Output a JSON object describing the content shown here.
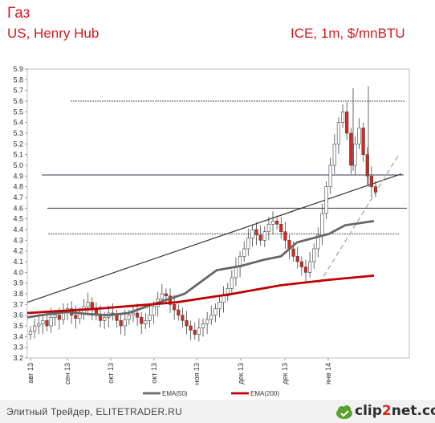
{
  "header": {
    "title": "Газ",
    "subtitle_left": "US, Henry Hub",
    "subtitle_right": "ICE, 1m, $/mnBTU"
  },
  "footer": {
    "source": "Элитный Трейдер, ELITETRADER.RU",
    "logo_prefix": "clip",
    "logo_digit": "2",
    "logo_suffix": "net.com"
  },
  "colors": {
    "title": "#d7191c",
    "up_candle": "#ffffff",
    "down_candle": "#e2231a",
    "ema50": "#666666",
    "ema200": "#c00000",
    "trendline": "#333333",
    "dashed_channel": "#a6a6a6"
  },
  "chart_data": {
    "type": "candlestick",
    "ylim": [
      3.2,
      5.9
    ],
    "yticks": [
      "3.2",
      "3.3",
      "3.4",
      "3.5",
      "3.6",
      "3.7",
      "3.8",
      "3.9",
      "4.0",
      "4.1",
      "4.2",
      "4.3",
      "4.4",
      "4.5",
      "4.6",
      "4.7",
      "4.8",
      "4.9",
      "5.0",
      "5.1",
      "5.2",
      "5.3",
      "5.4",
      "5.5",
      "5.6",
      "5.7",
      "5.8",
      "5.9"
    ],
    "x_tick_labels": [
      "авг 13",
      "сен 13",
      "окт 13",
      "окт 13",
      "ноя 13",
      "дек 13",
      "дек 13",
      "янв 14"
    ],
    "grid": false,
    "legend": [
      {
        "name": "EMA(50)",
        "color": "#666666"
      },
      {
        "name": "EMA(200)",
        "color": "#c00000"
      }
    ],
    "levels": [
      {
        "value": 5.6,
        "style": "dotted"
      },
      {
        "value": 4.91,
        "style": "solid"
      },
      {
        "value": 4.6,
        "style": "solid"
      },
      {
        "value": 4.36,
        "style": "dotted"
      }
    ],
    "close_series": [
      3.45,
      3.5,
      3.52,
      3.55,
      3.5,
      3.58,
      3.6,
      3.56,
      3.62,
      3.66,
      3.6,
      3.57,
      3.62,
      3.68,
      3.72,
      3.65,
      3.6,
      3.55,
      3.58,
      3.62,
      3.6,
      3.55,
      3.5,
      3.56,
      3.6,
      3.62,
      3.58,
      3.52,
      3.55,
      3.6,
      3.68,
      3.75,
      3.8,
      3.78,
      3.7,
      3.65,
      3.6,
      3.55,
      3.5,
      3.46,
      3.42,
      3.48,
      3.52,
      3.56,
      3.6,
      3.66,
      3.72,
      3.78,
      3.85,
      3.95,
      4.05,
      4.15,
      4.22,
      4.32,
      4.4,
      4.35,
      4.3,
      4.38,
      4.45,
      4.48,
      4.45,
      4.38,
      4.3,
      4.22,
      4.15,
      4.1,
      4.05,
      4.0,
      4.1,
      4.22,
      4.35,
      4.55,
      4.8,
      5.0,
      5.2,
      5.4,
      5.5,
      5.3,
      5.0,
      5.2,
      5.35,
      5.1,
      4.9,
      4.8,
      4.75
    ],
    "ema50": [
      [
        3.55,
        3.58
      ],
      [
        3.6,
        3.61
      ],
      [
        3.65,
        3.63
      ],
      [
        3.7,
        3.61
      ],
      [
        3.75,
        3.6
      ],
      [
        3.8,
        3.62
      ],
      [
        3.85,
        3.7
      ],
      [
        3.9,
        3.8
      ],
      [
        3.95,
        4.02
      ],
      [
        4.0,
        4.06
      ],
      [
        4.05,
        4.12
      ],
      [
        4.1,
        4.15
      ],
      [
        4.15,
        4.28
      ],
      [
        4.2,
        4.32
      ],
      [
        4.25,
        4.36
      ],
      [
        4.3,
        4.44
      ],
      [
        4.32,
        4.48
      ]
    ],
    "ema200": [
      [
        3.6,
        3.62
      ],
      [
        3.8,
        3.66
      ],
      [
        4.0,
        3.72
      ],
      [
        4.2,
        3.8
      ],
      [
        4.4,
        3.88
      ],
      [
        4.6,
        3.93
      ],
      [
        4.8,
        3.97
      ]
    ]
  }
}
